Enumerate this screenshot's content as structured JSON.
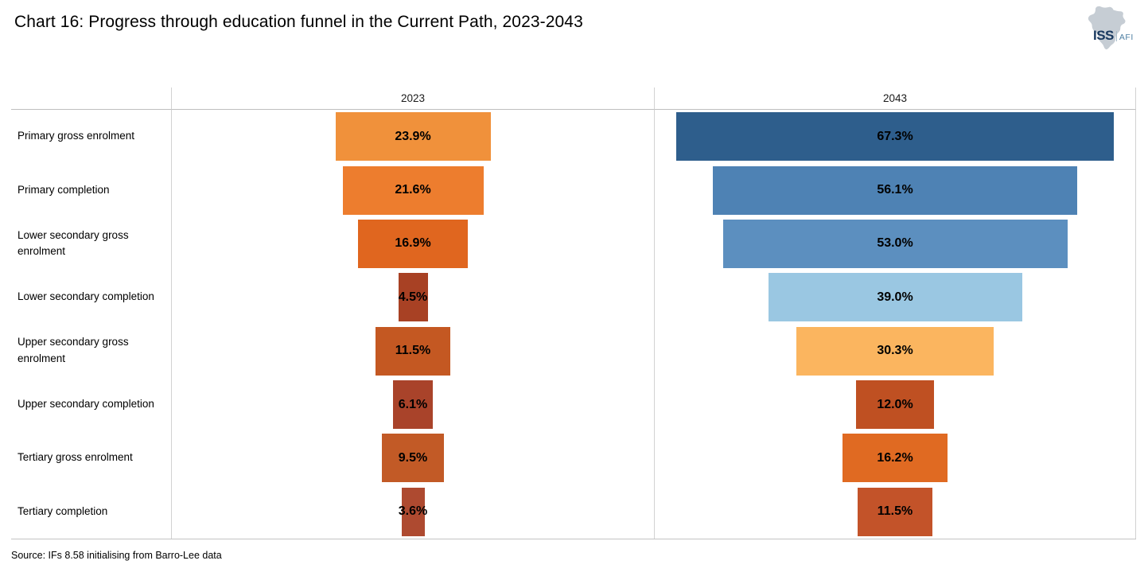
{
  "title": "Chart 16: Progress through education funnel in the Current Path, 2023-2043",
  "logo": {
    "iss": "ISS",
    "afi": "AFI",
    "iss_color": "#17375e",
    "afi_color": "#4e7fa3",
    "map_color": "#c6cdd4"
  },
  "chart_data": {
    "type": "bar",
    "subtype": "horizontal-centered-funnel",
    "title": "Chart 16: Progress through education funnel in the Current Path, 2023-2043",
    "value_format": "percent",
    "categories": [
      "Primary gross enrolment",
      "Primary completion",
      "Lower secondary gross enrolment",
      "Lower secondary completion",
      "Upper secondary gross enrolment",
      "Upper secondary completion",
      "Tertiary gross enrolment",
      "Tertiary completion"
    ],
    "series": [
      {
        "name": "2023",
        "values": [
          23.9,
          21.6,
          16.9,
          4.5,
          11.5,
          6.1,
          9.5,
          3.6
        ],
        "labels": [
          "23.9%",
          "21.6%",
          "16.9%",
          "4.5%",
          "11.5%",
          "6.1%",
          "9.5%",
          "3.6%"
        ],
        "colors": [
          "#f0913b",
          "#ed7d2e",
          "#e0661f",
          "#a84124",
          "#c45822",
          "#a9432a",
          "#c25a26",
          "#ae4a30"
        ]
      },
      {
        "name": "2043",
        "values": [
          67.3,
          56.1,
          53.0,
          39.0,
          30.3,
          12.0,
          16.2,
          11.5
        ],
        "labels": [
          "67.3%",
          "56.1%",
          "53.0%",
          "39.0%",
          "30.3%",
          "12.0%",
          "16.2%",
          "11.5%"
        ],
        "colors": [
          "#2e5e8c",
          "#4e82b4",
          "#5c8fbf",
          "#9ac7e2",
          "#fbb55f",
          "#bf5022",
          "#e06a22",
          "#c35329"
        ]
      }
    ],
    "layout": {
      "bars_centered": true,
      "grid": "panel borders only",
      "gridline_color": "#c9c9c9",
      "scale_note": "bar width proportional to value; 67.3% spans ~91% of panel width"
    },
    "source": "Source: IFs 8.58 initialising from Barro-Lee data"
  }
}
